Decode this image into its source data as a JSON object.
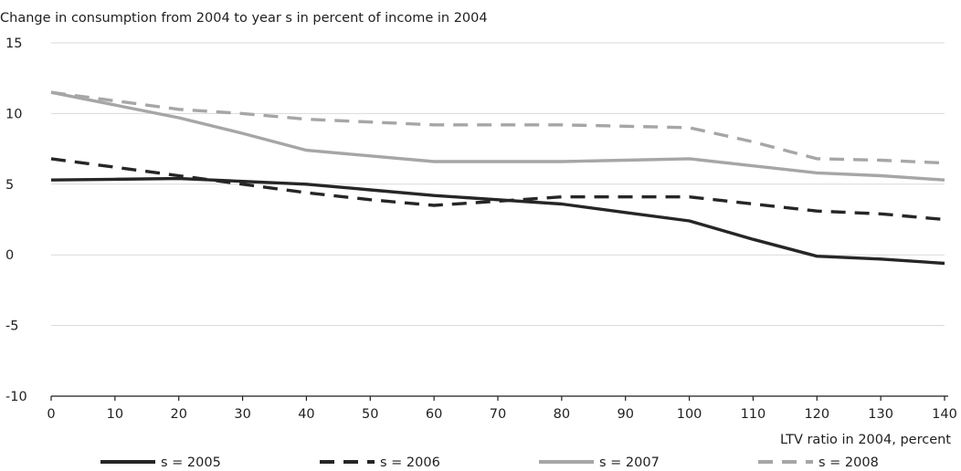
{
  "chart_data": {
    "type": "line",
    "title": "",
    "ylabel": "Change in consumption from 2004 to year s in percent of income in 2004",
    "xlabel": "LTV ratio in 2004, percent",
    "xlim": [
      0,
      140
    ],
    "ylim": [
      -10,
      15
    ],
    "x_ticks": [
      "0",
      "10",
      "20",
      "30",
      "40",
      "50",
      "60",
      "70",
      "80",
      "90",
      "100",
      "110",
      "120",
      "130",
      "140"
    ],
    "y_ticks": [
      "15",
      "10",
      "5",
      "0",
      "-5",
      "-10"
    ],
    "x_tick_values": [
      0,
      10,
      20,
      30,
      40,
      50,
      60,
      70,
      80,
      90,
      100,
      110,
      120,
      130,
      140
    ],
    "y_tick_values": [
      15,
      10,
      5,
      0,
      -5,
      -10
    ],
    "grid": "horizontal",
    "legend_position": "bottom",
    "x": [
      0,
      10,
      20,
      30,
      40,
      50,
      60,
      70,
      80,
      90,
      100,
      110,
      120,
      130,
      140
    ],
    "series": [
      {
        "name": "s = 2005",
        "color": "#262626",
        "dash": "solid",
        "values": [
          5.3,
          5.35,
          5.4,
          5.2,
          5.0,
          4.6,
          4.2,
          3.9,
          3.6,
          3.0,
          2.4,
          1.1,
          -0.1,
          -0.3,
          -0.6
        ]
      },
      {
        "name": "s = 2006",
        "color": "#262626",
        "dash": "dashed",
        "values": [
          6.8,
          6.2,
          5.6,
          5.0,
          4.4,
          3.9,
          3.5,
          3.8,
          4.1,
          4.1,
          4.1,
          3.6,
          3.1,
          2.9,
          2.5
        ]
      },
      {
        "name": "s = 2007",
        "color": "#a6a6a6",
        "dash": "solid",
        "values": [
          11.5,
          10.6,
          9.7,
          8.6,
          7.4,
          7.0,
          6.6,
          6.6,
          6.6,
          6.7,
          6.8,
          6.3,
          5.8,
          5.6,
          5.3
        ]
      },
      {
        "name": "s = 2008",
        "color": "#a6a6a6",
        "dash": "dashed",
        "values": [
          11.5,
          10.9,
          10.3,
          10.0,
          9.6,
          9.4,
          9.2,
          9.2,
          9.2,
          9.1,
          9.0,
          8.0,
          6.8,
          6.7,
          6.5
        ]
      }
    ]
  }
}
